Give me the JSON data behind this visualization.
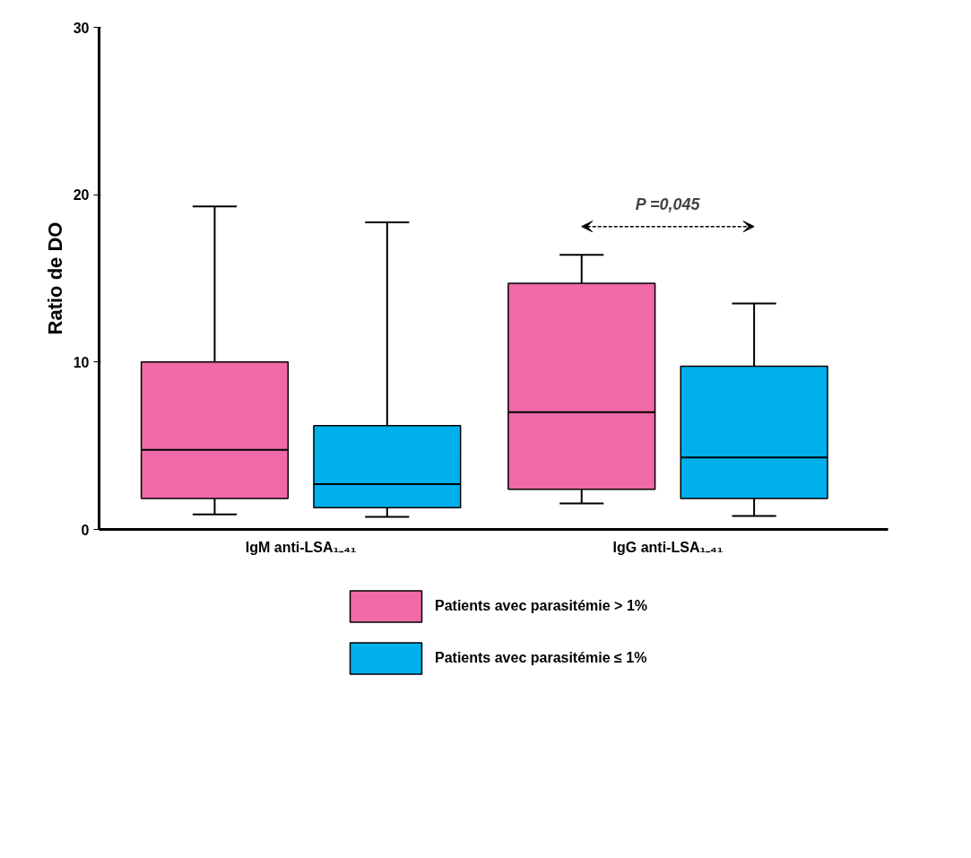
{
  "chart_data": {
    "type": "box",
    "ylabel": "Ratio de DO",
    "categories": [
      "IgM anti-LSA₁₋₄₁",
      "IgG anti-LSA₁₋₄₁"
    ],
    "series": [
      {
        "name": "Patients avec parasitémie > 1%",
        "color": "#f06aa8",
        "boxes": [
          {
            "low": 0.9,
            "q1": 1.85,
            "median": 4.75,
            "q3": 10.0,
            "high": 19.3
          },
          {
            "low": 1.55,
            "q1": 2.4,
            "median": 7.0,
            "q3": 14.7,
            "high": 16.4
          }
        ]
      },
      {
        "name": "Patients avec parasitémie ≤ 1%",
        "color": "#00b0ec",
        "boxes": [
          {
            "low": 0.75,
            "q1": 1.3,
            "median": 2.7,
            "q3": 6.2,
            "high": 18.35
          },
          {
            "low": 0.8,
            "q1": 1.85,
            "median": 4.3,
            "q3": 9.75,
            "high": 13.5
          }
        ]
      }
    ],
    "ylim": [
      0,
      30
    ],
    "yticks": [
      0,
      10,
      20,
      30
    ],
    "grid": false,
    "legend": "bottom",
    "annotations": [
      "P =0,045"
    ]
  }
}
